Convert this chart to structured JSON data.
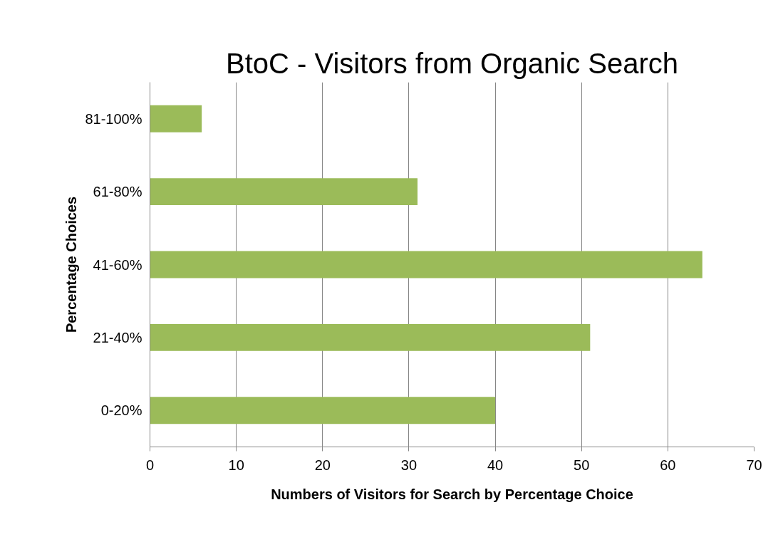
{
  "chart_data": {
    "type": "bar",
    "orientation": "horizontal",
    "title": "BtoC - Visitors from Organic Search",
    "xlabel": "Numbers of Visitors for Search by Percentage Choice",
    "ylabel": "Percentage Choices",
    "categories": [
      "81-100%",
      "61-80%",
      "41-60%",
      "21-40%",
      "0-20%"
    ],
    "values": [
      6,
      31,
      64,
      51,
      40
    ],
    "color": "#9bbb59",
    "xlim": [
      0,
      70
    ],
    "xticks": [
      0,
      10,
      20,
      30,
      40,
      50,
      60,
      70
    ],
    "grid": "x"
  }
}
